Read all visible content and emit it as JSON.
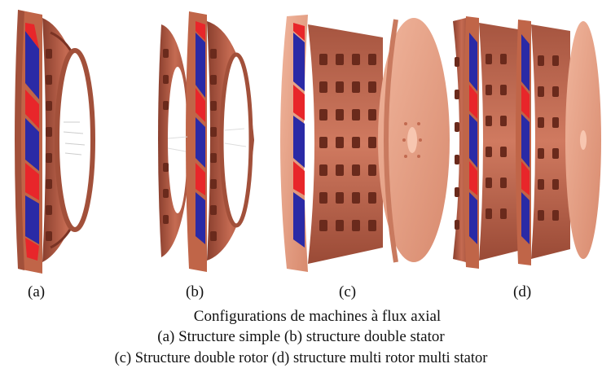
{
  "panels": [
    {
      "id": "a",
      "label": "(a)"
    },
    {
      "id": "b",
      "label": "(b)"
    },
    {
      "id": "c",
      "label": "(c)"
    },
    {
      "id": "d",
      "label": "(d)"
    }
  ],
  "caption": {
    "title": "Configurations de machines à flux axial",
    "line1": "(a)   Structure simple  (b) structure double stator",
    "line2": "(c) Structure double rotor (d) structure multi rotor multi stator"
  },
  "colors": {
    "copper": "#b8604a",
    "copper_dark": "#8a3f2e",
    "copper_light": "#e6a08a",
    "magnet_red": "#e8262a",
    "magnet_blue": "#2a2aa6"
  }
}
